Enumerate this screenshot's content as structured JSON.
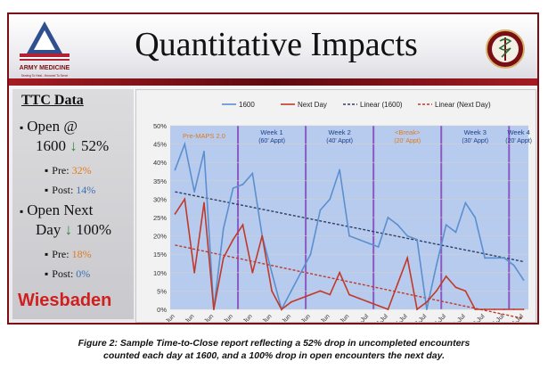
{
  "slide": {
    "title": "Quantitative Impacts",
    "logo_text": "ARMY MEDICINE",
    "logo_tagline": "Serving To Heal...Honored To Serve",
    "left_panel": {
      "heading": "TTC Data",
      "open1600_label": "Open @",
      "open1600_value": "1600",
      "open1600_pct": "52%",
      "pre1_label": "Pre:",
      "pre1_value": "32%",
      "post1_label": "Post:",
      "post1_value": "14%",
      "opennext_label": "Open Next",
      "opennext_value": "Day",
      "opennext_pct": "100%",
      "pre2_label": "Pre:",
      "pre2_value": "18%",
      "post2_label": "Post:",
      "post2_value": "0%",
      "location": "Wiesbaden"
    }
  },
  "caption": {
    "line1": "Figure 2: Sample Time-to-Close report reflecting a 52% drop in uncompleted encounters",
    "line2": "counted each day at 1600, and a 100% drop in open encounters the next day."
  },
  "colors": {
    "series_1600": "#5b8fd0",
    "series_nextday": "#c0392b",
    "trend_1600": "#2c3e66",
    "trend_nextday": "#c0392b",
    "region": "#a9c2ea",
    "divider": "#8a5ac0",
    "period_label": "#1d3f8c",
    "premaps_label": "#e07b1f"
  },
  "chart_data": {
    "type": "line",
    "ylim": [
      0,
      50
    ],
    "yticks": [
      "0%",
      "5%",
      "10%",
      "15%",
      "20%",
      "25%",
      "30%",
      "35%",
      "40%",
      "45%",
      "50%"
    ],
    "x": [
      11,
      12,
      13,
      14,
      15,
      16,
      17,
      18,
      19,
      20,
      21,
      22,
      23,
      24,
      25,
      26,
      27,
      28,
      29,
      30,
      31,
      32,
      33,
      34,
      35,
      36,
      37,
      38,
      39,
      40,
      41,
      42,
      43,
      44,
      45,
      46,
      47
    ],
    "xlim": [
      10.5,
      47.5
    ],
    "xticks": [
      {
        "pos": 11,
        "label": "11-Jun"
      },
      {
        "pos": 13,
        "label": "13-Jun"
      },
      {
        "pos": 15,
        "label": "15-Jun"
      },
      {
        "pos": 17,
        "label": "17-Jun"
      },
      {
        "pos": 19,
        "label": "19-Jun"
      },
      {
        "pos": 21,
        "label": "21-Jun"
      },
      {
        "pos": 23,
        "label": "23-Jun"
      },
      {
        "pos": 25,
        "label": "25-Jun"
      },
      {
        "pos": 27,
        "label": "27-Jun"
      },
      {
        "pos": 29,
        "label": "29-Jun"
      },
      {
        "pos": 31,
        "label": "1-Jul"
      },
      {
        "pos": 33,
        "label": "3-Jul"
      },
      {
        "pos": 35,
        "label": "5-Jul"
      },
      {
        "pos": 37,
        "label": "7-Jul"
      },
      {
        "pos": 39,
        "label": "9-Jul"
      },
      {
        "pos": 41,
        "label": "11-Jul"
      },
      {
        "pos": 43,
        "label": "13-Jul"
      },
      {
        "pos": 45,
        "label": "15-Jul"
      },
      {
        "pos": 47,
        "label": "17-Jul"
      }
    ],
    "series": [
      {
        "name": "1600",
        "values": [
          38,
          45,
          32,
          43,
          0,
          22,
          33,
          34,
          37,
          20,
          10,
          0,
          5,
          10,
          15,
          27,
          30,
          38,
          20,
          19,
          18,
          17,
          25,
          23,
          20,
          19,
          0,
          12,
          23,
          21,
          29,
          25,
          14,
          14,
          14,
          12,
          8
        ]
      },
      {
        "name": "Next Day",
        "values": [
          26,
          30,
          10,
          29,
          0,
          14,
          19,
          23,
          10,
          20,
          5,
          0,
          2,
          3,
          4,
          5,
          4,
          10,
          4,
          3,
          2,
          1,
          0,
          7,
          14,
          0,
          2,
          5,
          9,
          6,
          5,
          0,
          0,
          0,
          0,
          0,
          0
        ]
      }
    ],
    "trendlines": [
      {
        "name": "Linear (1600)",
        "from": [
          11,
          32
        ],
        "to": [
          47,
          13
        ]
      },
      {
        "name": "Linear (Next Day)",
        "from": [
          11,
          17.5
        ],
        "to": [
          47,
          -2.5
        ]
      }
    ],
    "legend": [
      "1600",
      "Next Day",
      "Linear (1600)",
      "Linear (Next Day)"
    ],
    "periods": [
      {
        "label": "Pre-MAPS 2.0",
        "sub": "",
        "start": 10.5,
        "end": 17.5,
        "style": "premaps"
      },
      {
        "label": "Week 1",
        "sub": "(60' Appt)",
        "start": 17.5,
        "end": 24.5,
        "style": "week"
      },
      {
        "label": "Week 2",
        "sub": "(40' Appt)",
        "start": 24.5,
        "end": 31.5,
        "style": "week"
      },
      {
        "label": "<Break>",
        "sub": "(20' Appt)",
        "start": 31.5,
        "end": 38.5,
        "style": "break"
      },
      {
        "label": "Week 3",
        "sub": "(30' Appt)",
        "start": 38.5,
        "end": 45.5,
        "style": "week"
      },
      {
        "label": "Week 4",
        "sub": "(20' Appt)",
        "start": 45.5,
        "end": 47.5,
        "style": "week"
      }
    ]
  }
}
